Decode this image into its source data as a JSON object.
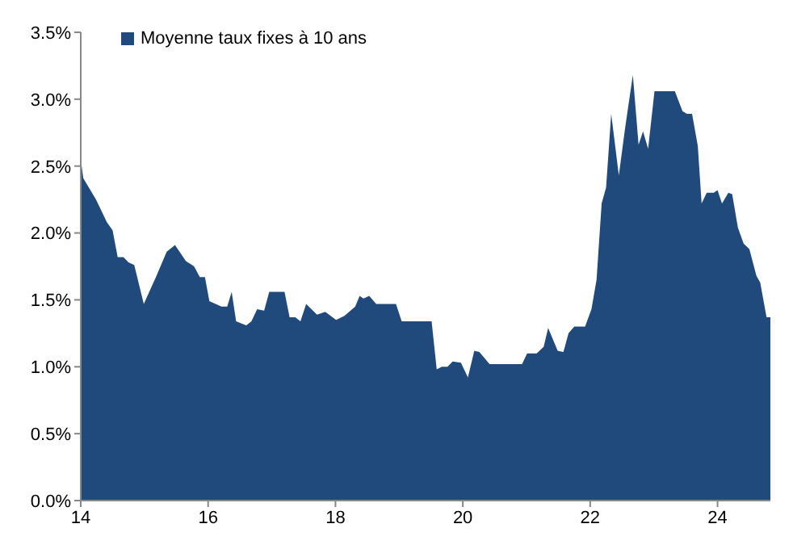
{
  "chart_data": {
    "type": "area",
    "x": [
      14.0,
      14.04,
      14.24,
      14.41,
      14.5,
      14.58,
      14.67,
      14.75,
      14.84,
      14.99,
      15.18,
      15.35,
      15.48,
      15.65,
      15.78,
      15.87,
      15.95,
      16.02,
      16.21,
      16.3,
      16.37,
      16.44,
      16.6,
      16.68,
      16.77,
      16.88,
      16.96,
      17.2,
      17.28,
      17.37,
      17.45,
      17.54,
      17.71,
      17.84,
      18.01,
      18.14,
      18.31,
      18.38,
      18.44,
      18.53,
      18.64,
      18.95,
      19.04,
      19.51,
      19.59,
      19.67,
      19.76,
      19.84,
      19.97,
      20.08,
      20.18,
      20.26,
      20.42,
      20.93,
      21.01,
      21.16,
      21.27,
      21.34,
      21.49,
      21.58,
      21.66,
      21.75,
      21.92,
      22.02,
      22.1,
      22.18,
      22.25,
      22.33,
      22.45,
      22.55,
      22.67,
      22.76,
      22.83,
      22.91,
      23.01,
      23.33,
      23.45,
      23.52,
      23.6,
      23.69,
      23.75,
      23.83,
      23.94,
      24.0,
      24.07,
      24.17,
      24.23,
      24.32,
      24.41,
      24.5,
      24.61,
      24.67,
      24.77,
      24.83
    ],
    "series": [
      {
        "name": "Moyenne taux fixes à 10 ans",
        "color": "#214a7c",
        "values": [
          2.55,
          2.41,
          2.25,
          2.08,
          2.02,
          1.82,
          1.82,
          1.78,
          1.76,
          1.47,
          1.67,
          1.86,
          1.91,
          1.79,
          1.75,
          1.67,
          1.67,
          1.49,
          1.45,
          1.45,
          1.56,
          1.34,
          1.31,
          1.34,
          1.43,
          1.42,
          1.56,
          1.56,
          1.37,
          1.37,
          1.34,
          1.47,
          1.39,
          1.41,
          1.35,
          1.38,
          1.45,
          1.53,
          1.51,
          1.53,
          1.47,
          1.47,
          1.34,
          1.34,
          0.98,
          1.0,
          1.0,
          1.04,
          1.03,
          0.92,
          1.12,
          1.11,
          1.02,
          1.02,
          1.1,
          1.1,
          1.15,
          1.29,
          1.12,
          1.11,
          1.25,
          1.3,
          1.3,
          1.43,
          1.65,
          2.22,
          2.34,
          2.89,
          2.43,
          2.79,
          3.18,
          2.66,
          2.76,
          2.63,
          3.06,
          3.06,
          2.91,
          2.89,
          2.89,
          2.65,
          2.22,
          2.3,
          2.3,
          2.32,
          2.22,
          2.3,
          2.29,
          2.04,
          1.92,
          1.88,
          1.68,
          1.63,
          1.37,
          1.37
        ]
      }
    ],
    "xlim": [
      14,
      24.83
    ],
    "xticks": [
      14,
      16,
      18,
      20,
      22,
      24
    ],
    "ylim": [
      0,
      3.5
    ],
    "yticks": [
      {
        "value": 0,
        "label": "0.0%"
      },
      {
        "value": 0.5,
        "label": "0.5%"
      },
      {
        "value": 1,
        "label": "1.0%"
      },
      {
        "value": 1.5,
        "label": "1.5%"
      },
      {
        "value": 2,
        "label": "2.0%"
      },
      {
        "value": 2.5,
        "label": "2.5%"
      },
      {
        "value": 3,
        "label": "3.0%"
      },
      {
        "value": 3.5,
        "label": "3.5%"
      }
    ],
    "legend": "top left",
    "grid": false
  }
}
